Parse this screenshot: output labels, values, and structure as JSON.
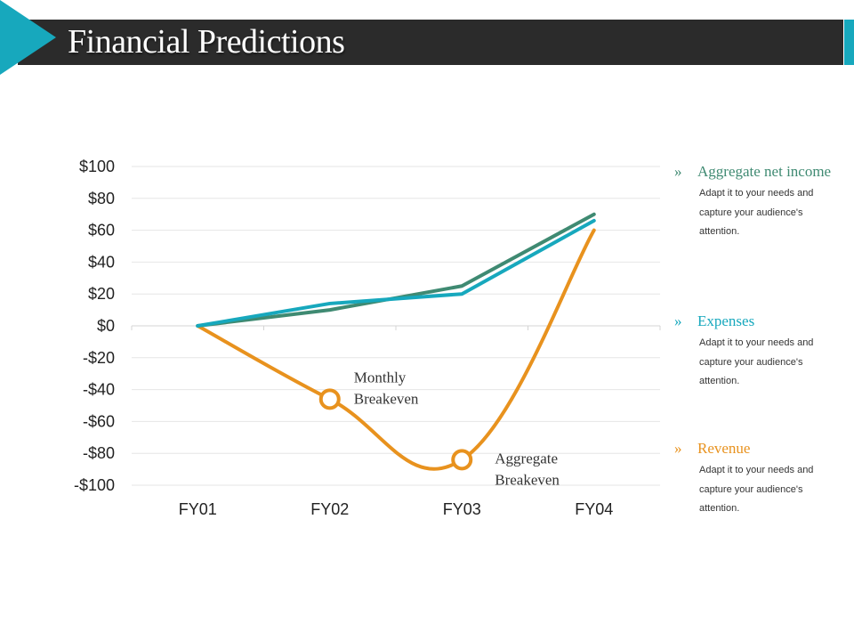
{
  "slide": {
    "title": "Financial Predictions",
    "colors": {
      "title_bar": "#2b2b2b",
      "accent": "#17a8bd"
    }
  },
  "chart_data": {
    "type": "line",
    "title": "",
    "xlabel": "",
    "ylabel": "",
    "categories": [
      "FY01",
      "FY02",
      "FY03",
      "FY04"
    ],
    "ylim": [
      -100,
      100
    ],
    "y_ticks": [
      "$100",
      "$80",
      "$60",
      "$40",
      "$20",
      "$0",
      "-$20",
      "-$40",
      "-$60",
      "-$80",
      "-$100"
    ],
    "y_tick_values": [
      100,
      80,
      60,
      40,
      20,
      0,
      -20,
      -40,
      -60,
      -80,
      -100
    ],
    "grid": true,
    "series": [
      {
        "name": "Aggregate net income",
        "color": "#3f8a72",
        "values": [
          0,
          10,
          25,
          70
        ],
        "smooth": false
      },
      {
        "name": "Expenses",
        "color": "#17a8bd",
        "values": [
          0,
          14,
          20,
          66
        ],
        "smooth": false
      },
      {
        "name": "Revenue",
        "color": "#e8921e",
        "values": [
          0,
          -46,
          -84,
          60
        ],
        "smooth": true
      }
    ],
    "annotations": [
      {
        "series": "Revenue",
        "category": "FY02",
        "value": -46,
        "label_line1": "Monthly",
        "label_line2": "Breakeven"
      },
      {
        "series": "Revenue",
        "category": "FY03",
        "value": -84,
        "label_line1": "Aggregate",
        "label_line2": "Breakeven"
      }
    ]
  },
  "legend": [
    {
      "chevron": "»",
      "name": "Aggregate net income",
      "color": "#3f8a72",
      "desc": "Adapt it to your needs and capture your audience's attention."
    },
    {
      "chevron": "»",
      "name": "Expenses",
      "color": "#17a8bd",
      "desc": "Adapt it to your needs and capture your audience's attention."
    },
    {
      "chevron": "»",
      "name": "Revenue",
      "color": "#e8921e",
      "desc": "Adapt it to your needs and capture your audience's attention."
    }
  ]
}
